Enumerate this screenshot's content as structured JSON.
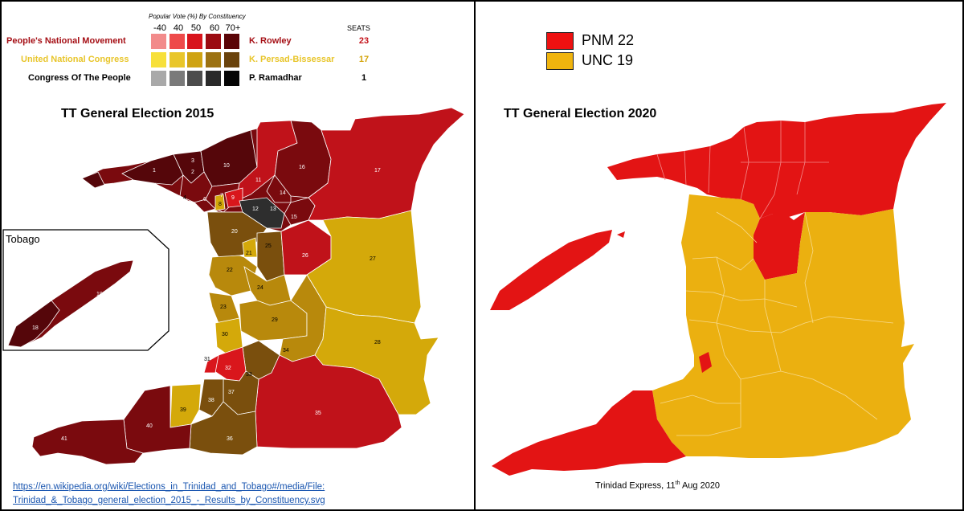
{
  "left": {
    "vote_caption": "Popular Vote (%) By Constituency",
    "ranges": [
      "-40",
      "40",
      "50",
      "60",
      "70+"
    ],
    "seats_header": "SEATS",
    "parties": [
      {
        "name": "People's National Movement",
        "leader": "K. Rowley",
        "seats": "23",
        "name_color": "#a50f15",
        "seat_color": "#c4121a",
        "swatches": [
          "#f28b8b",
          "#ee4a4a",
          "#d8141c",
          "#9b0b12",
          "#5a0407"
        ]
      },
      {
        "name": "United National Congress",
        "leader": "K. Persad-Bissessar",
        "seats": "17",
        "name_color": "#e8c52a",
        "seat_color": "#d4a40a",
        "swatches": [
          "#f7e03a",
          "#e9c62a",
          "#cfa312",
          "#9c7212",
          "#6a430c"
        ]
      },
      {
        "name": "Congress Of The People",
        "leader": "P. Ramadhar",
        "seats": "1",
        "name_color": "#000000",
        "seat_color": "#000000",
        "swatches": [
          "#a9a9a9",
          "#7a7a7a",
          "#4c4c4c",
          "#2a2a2a",
          "#050505"
        ]
      }
    ],
    "title": "TT General Election 2015",
    "inset_label": "Tobago",
    "districts": [
      "1",
      "2",
      "3",
      "4",
      "5",
      "6",
      "7",
      "8",
      "9",
      "10",
      "11",
      "12",
      "13",
      "14",
      "15",
      "16",
      "17",
      "18",
      "19",
      "20",
      "21",
      "22",
      "23",
      "24",
      "25",
      "26",
      "27",
      "28",
      "29",
      "30",
      "31",
      "32",
      "33",
      "34",
      "35",
      "36",
      "37",
      "38",
      "39",
      "40",
      "41"
    ],
    "source_line1": "https://en.wikipedia.org/wiki/Elections_in_Trinidad_and_Tobago#/media/File:",
    "source_line2": "Trinidad_&_Tobago_general_election_2015_-_Results_by_Constituency.svg"
  },
  "right": {
    "legend": [
      {
        "label": "PNM 22",
        "color": "#ee1111"
      },
      {
        "label": "UNC 19",
        "color": "#f0b40e"
      }
    ],
    "title": "TT General Election 2020",
    "caption_prefix": "Trinidad Express, 11",
    "caption_sup": "th",
    "caption_suffix": " Aug 2020"
  },
  "colors": {
    "pnm_dark": "#7a0a0e",
    "pnm_darkest": "#55060a",
    "pnm_mid": "#c0121a",
    "pnm_bright": "#d9161c",
    "unc_light": "#d4a90a",
    "unc_mid": "#b8890c",
    "unc_dark": "#7a4f0d",
    "cop": "#2e2e2e",
    "pnm_2020": "#e31414",
    "unc_2020": "#ebb010"
  }
}
